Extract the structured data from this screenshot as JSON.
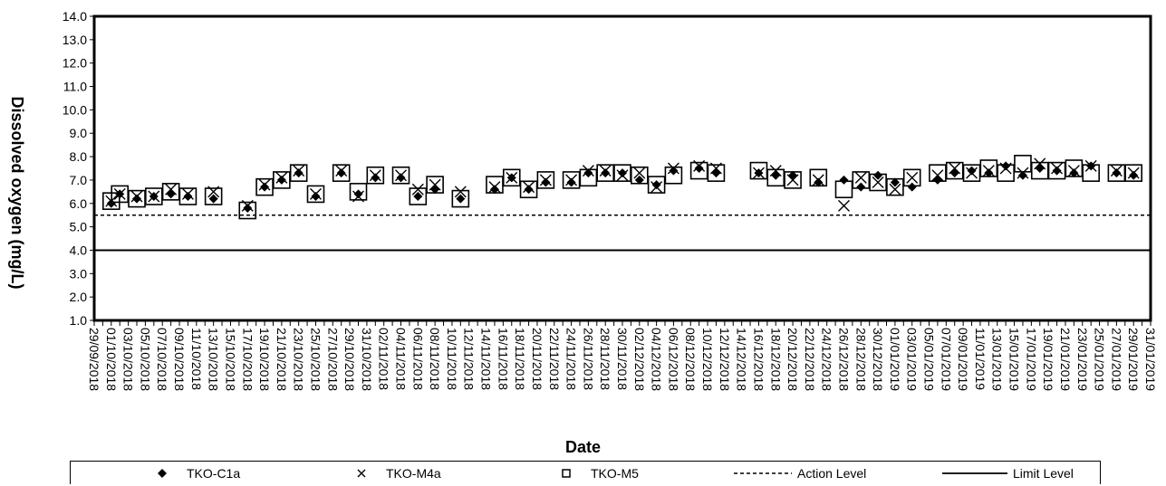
{
  "chart_data": {
    "type": "scatter",
    "title": "",
    "xlabel": "Date",
    "ylabel": "Dissolved oxygen (mg/L)",
    "ylim": [
      1.0,
      14.0
    ],
    "ytick_labels": [
      "1.0",
      "2.0",
      "3.0",
      "4.0",
      "5.0",
      "6.0",
      "7.0",
      "8.0",
      "9.0",
      "10.0",
      "11.0",
      "12.0",
      "13.0",
      "14.0"
    ],
    "x_tick_labels": [
      "29/09/2018",
      "01/10/2018",
      "03/10/2018",
      "05/10/2018",
      "07/10/2018",
      "09/10/2018",
      "11/10/2018",
      "13/10/2018",
      "15/10/2018",
      "17/10/2018",
      "19/10/2018",
      "21/10/2018",
      "23/10/2018",
      "25/10/2018",
      "27/10/2018",
      "29/10/2018",
      "31/10/2018",
      "02/11/2018",
      "04/11/2018",
      "06/11/2018",
      "08/11/2018",
      "10/11/2018",
      "12/11/2018",
      "14/11/2018",
      "16/11/2018",
      "18/11/2018",
      "20/11/2018",
      "22/11/2018",
      "24/11/2018",
      "26/11/2018",
      "28/11/2018",
      "30/11/2018",
      "02/12/2018",
      "04/12/2018",
      "06/12/2018",
      "08/12/2018",
      "10/12/2018",
      "12/12/2018",
      "14/12/2018",
      "16/12/2018",
      "18/12/2018",
      "20/12/2018",
      "22/12/2018",
      "24/12/2018",
      "26/12/2018",
      "28/12/2018",
      "30/12/2018",
      "01/01/2019",
      "03/01/2019",
      "05/01/2019",
      "07/01/2019",
      "09/01/2019",
      "11/01/2019",
      "13/01/2019",
      "15/01/2019",
      "17/01/2019",
      "19/01/2019",
      "21/01/2019",
      "23/01/2019",
      "25/01/2019",
      "27/01/2019",
      "29/01/2019",
      "31/01/2019"
    ],
    "reference_lines": [
      {
        "name": "Action Level",
        "value": 5.5,
        "style": "dashed"
      },
      {
        "name": "Limit Level",
        "value": 4.0,
        "style": "solid"
      }
    ],
    "series": [
      {
        "name": "TKO-C1a",
        "marker": "diamond",
        "x": [
          "01/10/2018",
          "02/10/2018",
          "04/10/2018",
          "06/10/2018",
          "08/10/2018",
          "10/10/2018",
          "13/10/2018",
          "17/10/2018",
          "19/10/2018",
          "21/10/2018",
          "23/10/2018",
          "25/10/2018",
          "28/10/2018",
          "30/10/2018",
          "01/11/2018",
          "04/11/2018",
          "06/11/2018",
          "08/11/2018",
          "11/11/2018",
          "15/11/2018",
          "17/11/2018",
          "19/11/2018",
          "21/11/2018",
          "24/11/2018",
          "26/11/2018",
          "28/11/2018",
          "30/11/2018",
          "02/12/2018",
          "04/12/2018",
          "06/12/2018",
          "09/12/2018",
          "11/12/2018",
          "16/12/2018",
          "18/12/2018",
          "20/12/2018",
          "23/12/2018",
          "26/12/2018",
          "28/12/2018",
          "30/12/2018",
          "01/01/2019",
          "03/01/2019",
          "06/01/2019",
          "08/01/2019",
          "10/01/2019",
          "12/01/2019",
          "14/01/2019",
          "16/01/2019",
          "18/01/2019",
          "20/01/2019",
          "22/01/2019",
          "24/01/2019",
          "27/01/2019",
          "29/01/2019"
        ],
        "y": [
          6.0,
          6.4,
          6.2,
          6.3,
          6.4,
          6.3,
          6.2,
          5.8,
          6.7,
          7.0,
          7.3,
          6.3,
          7.3,
          6.4,
          7.1,
          7.1,
          6.3,
          6.6,
          6.2,
          6.6,
          7.1,
          6.6,
          6.9,
          6.9,
          7.3,
          7.3,
          7.3,
          7.0,
          6.8,
          7.4,
          7.5,
          7.3,
          7.3,
          7.2,
          7.2,
          6.9,
          7.0,
          6.7,
          7.2,
          6.9,
          6.7,
          7.0,
          7.3,
          7.4,
          7.3,
          7.6,
          7.2,
          7.5,
          7.4,
          7.3,
          7.6,
          7.3,
          7.2
        ]
      },
      {
        "name": "TKO-M4a",
        "marker": "x",
        "x": [
          "01/10/2018",
          "02/10/2018",
          "04/10/2018",
          "06/10/2018",
          "08/10/2018",
          "10/10/2018",
          "13/10/2018",
          "17/10/2018",
          "19/10/2018",
          "21/10/2018",
          "23/10/2018",
          "25/10/2018",
          "28/10/2018",
          "30/10/2018",
          "01/11/2018",
          "04/11/2018",
          "06/11/2018",
          "08/11/2018",
          "11/11/2018",
          "15/11/2018",
          "17/11/2018",
          "19/11/2018",
          "21/11/2018",
          "24/11/2018",
          "26/11/2018",
          "28/11/2018",
          "30/11/2018",
          "02/12/2018",
          "04/12/2018",
          "06/12/2018",
          "09/12/2018",
          "11/12/2018",
          "16/12/2018",
          "18/12/2018",
          "20/12/2018",
          "23/12/2018",
          "26/12/2018",
          "28/12/2018",
          "30/12/2018",
          "01/01/2019",
          "03/01/2019",
          "06/01/2019",
          "08/01/2019",
          "10/01/2019",
          "12/01/2019",
          "14/01/2019",
          "16/01/2019",
          "18/01/2019",
          "20/01/2019",
          "22/01/2019",
          "24/01/2019",
          "27/01/2019",
          "29/01/2019"
        ],
        "y": [
          6.1,
          6.4,
          6.3,
          6.3,
          6.6,
          6.4,
          6.5,
          5.9,
          6.8,
          7.1,
          7.4,
          6.4,
          7.4,
          6.3,
          7.2,
          7.2,
          6.6,
          6.8,
          6.5,
          6.7,
          7.1,
          6.7,
          7.0,
          7.0,
          7.4,
          7.4,
          7.2,
          7.3,
          6.7,
          7.5,
          7.6,
          7.5,
          7.3,
          7.4,
          7.0,
          7.0,
          5.9,
          7.1,
          6.9,
          6.6,
          7.1,
          7.2,
          7.5,
          7.3,
          7.4,
          7.5,
          7.3,
          7.7,
          7.5,
          7.4,
          7.6,
          7.4,
          7.3
        ]
      },
      {
        "name": "TKO-M5",
        "marker": "square",
        "x": [
          "01/10/2018",
          "02/10/2018",
          "04/10/2018",
          "06/10/2018",
          "08/10/2018",
          "10/10/2018",
          "13/10/2018",
          "17/10/2018",
          "19/10/2018",
          "21/10/2018",
          "23/10/2018",
          "25/10/2018",
          "28/10/2018",
          "30/10/2018",
          "01/11/2018",
          "04/11/2018",
          "06/11/2018",
          "08/11/2018",
          "11/11/2018",
          "15/11/2018",
          "17/11/2018",
          "19/11/2018",
          "21/11/2018",
          "24/11/2018",
          "26/11/2018",
          "28/11/2018",
          "30/11/2018",
          "02/12/2018",
          "04/12/2018",
          "06/12/2018",
          "09/12/2018",
          "11/12/2018",
          "16/12/2018",
          "18/12/2018",
          "20/12/2018",
          "23/12/2018",
          "26/12/2018",
          "28/12/2018",
          "30/12/2018",
          "01/01/2019",
          "03/01/2019",
          "06/01/2019",
          "08/01/2019",
          "10/01/2019",
          "12/01/2019",
          "14/01/2019",
          "16/01/2019",
          "18/01/2019",
          "20/01/2019",
          "22/01/2019",
          "24/01/2019",
          "27/01/2019",
          "29/01/2019"
        ],
        "y": [
          6.1,
          6.4,
          6.2,
          6.3,
          6.5,
          6.3,
          6.3,
          5.7,
          6.7,
          7.0,
          7.3,
          6.4,
          7.3,
          6.5,
          7.2,
          7.2,
          6.3,
          6.8,
          6.2,
          6.8,
          7.1,
          6.6,
          7.0,
          7.0,
          7.1,
          7.3,
          7.3,
          7.2,
          6.8,
          7.2,
          7.4,
          7.3,
          7.4,
          7.1,
          7.0,
          7.1,
          6.6,
          7.0,
          6.9,
          6.7,
          7.1,
          7.3,
          7.4,
          7.3,
          7.5,
          7.3,
          7.7,
          7.4,
          7.4,
          7.5,
          7.3,
          7.3,
          7.3
        ]
      }
    ]
  },
  "legend": {
    "c1a": "TKO-C1a",
    "m4a": "TKO-M4a",
    "m5": "TKO-M5",
    "action": "Action Level",
    "limit": "Limit Level"
  }
}
